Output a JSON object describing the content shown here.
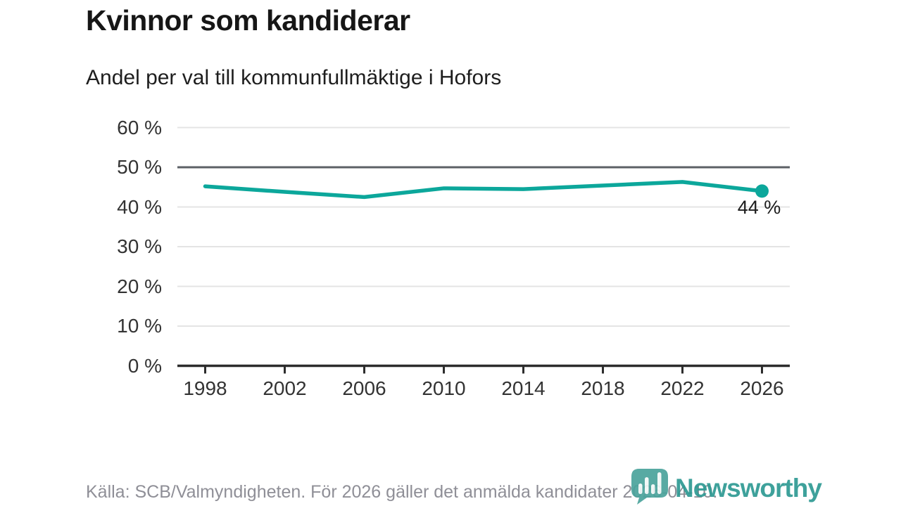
{
  "header": {
    "title": "Kvinnor som kandiderar",
    "subtitle": "Andel per val till kommunfullmäktige i Hofors"
  },
  "chart_data": {
    "type": "line",
    "title": "Kvinnor som kandiderar",
    "subtitle": "Andel per val till kommunfullmäktige i Hofors",
    "x": [
      1998,
      2002,
      2006,
      2010,
      2014,
      2018,
      2022,
      2026
    ],
    "xticks": [
      "1998",
      "2002",
      "2006",
      "2010",
      "2014",
      "2018",
      "2022",
      "2026"
    ],
    "values": [
      45.2,
      43.8,
      42.5,
      44.7,
      44.5,
      45.4,
      46.3,
      44.0
    ],
    "end_label": "44 %",
    "ylim": [
      0,
      60
    ],
    "ytick_step": 10,
    "ytick_suffix": " %",
    "yticks": [
      "0 %",
      "10 %",
      "20 %",
      "30 %",
      "40 %",
      "50 %",
      "60 %"
    ],
    "reference_line": 50,
    "grid": "horizontal",
    "legend": "none",
    "line_color": "#0ca79b",
    "marker": "end-dot"
  },
  "colors": {
    "accent_teal": "#0ca79b",
    "gridline": "#e4e4e4",
    "reference_line": "#5c6065",
    "axis": "#2c2c2c",
    "footer_text": "#8f8f97",
    "brand_teal": "#2e9a93",
    "logo_bubble": "#4aa39c"
  },
  "footer": {
    "source": "Källa: SCB/Valmyndigheten. För 2026 gäller det anmälda kandidater 2026-04-10."
  },
  "branding": {
    "name": "Newsworthy",
    "logo_icon": "bar-chart-speech-bubble-icon"
  }
}
